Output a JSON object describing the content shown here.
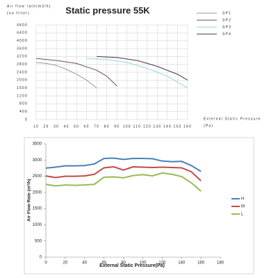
{
  "chart_data": [
    {
      "type": "line",
      "title": "Static pressure 55K",
      "y_label": "Air flow rate(m3/h)",
      "y_note": "(no filter)",
      "x_label": "External Static Pressure",
      "x_unit": "(Pa)",
      "xlim": [
        10,
        160
      ],
      "xticks": [
        10,
        20,
        30,
        40,
        50,
        60,
        70,
        80,
        90,
        100,
        110,
        120,
        130,
        140,
        150,
        160
      ],
      "ylim": [
        0,
        4800
      ],
      "yticks": [
        0,
        400,
        800,
        1200,
        1600,
        2000,
        2400,
        2800,
        3200,
        3600,
        4000,
        4400,
        4800
      ],
      "grid": true,
      "series": [
        {
          "name": "SP1",
          "color": "#9a9a9a",
          "x": [
            10,
            20,
            30,
            40,
            50,
            60,
            70
          ],
          "values": [
            2900,
            2850,
            2750,
            2550,
            2300,
            2000,
            1600
          ]
        },
        {
          "name": "SP2",
          "color": "#6a4a6a",
          "x": [
            10,
            30,
            50,
            70,
            80,
            90
          ],
          "values": [
            3100,
            3000,
            2850,
            2500,
            2200,
            1700
          ]
        },
        {
          "name": "SP3",
          "color": "#8fdada",
          "x": [
            60,
            80,
            100,
            120,
            140,
            160
          ],
          "values": [
            3100,
            3050,
            2900,
            2600,
            2200,
            1600
          ]
        },
        {
          "name": "SP4",
          "color": "#4a3050",
          "x": [
            70,
            90,
            110,
            130,
            150,
            160
          ],
          "values": [
            3200,
            3150,
            3000,
            2700,
            2300,
            2000
          ]
        }
      ]
    },
    {
      "type": "line",
      "y_label": "Air Flow Rate (m³/h)",
      "x_label": "External Static Pressure(Pa)",
      "xlim": [
        0,
        180
      ],
      "xticks": [
        0,
        20,
        40,
        60,
        80,
        100,
        120,
        140,
        160,
        180
      ],
      "ylim": [
        0,
        3500
      ],
      "yticks": [
        0,
        500,
        1000,
        1500,
        2000,
        2500,
        3000,
        3500
      ],
      "grid": false,
      "x": [
        0,
        10,
        20,
        30,
        40,
        50,
        60,
        70,
        80,
        90,
        100,
        110,
        120,
        130,
        140,
        150,
        160
      ],
      "series": [
        {
          "name": "H",
          "color": "#4a7ebb",
          "values": [
            2750,
            2780,
            2820,
            2820,
            2830,
            2880,
            3050,
            3060,
            3020,
            3050,
            3050,
            3040,
            2970,
            2950,
            2960,
            2830,
            2650
          ]
        },
        {
          "name": "M",
          "color": "#be4b48",
          "values": [
            2510,
            2460,
            2500,
            2500,
            2510,
            2560,
            2760,
            2790,
            2690,
            2790,
            2780,
            2770,
            2780,
            2770,
            2760,
            2640,
            2360
          ]
        },
        {
          "name": "L",
          "color": "#98b954",
          "values": [
            2250,
            2200,
            2230,
            2220,
            2230,
            2250,
            2470,
            2480,
            2450,
            2520,
            2550,
            2510,
            2600,
            2560,
            2490,
            2300,
            2040
          ]
        }
      ]
    }
  ]
}
